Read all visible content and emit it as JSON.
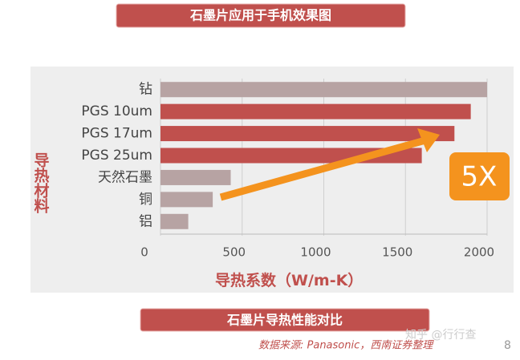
{
  "header": {
    "title": "石墨片应用于手机效果图"
  },
  "chart_data": {
    "type": "bar",
    "orientation": "horizontal",
    "categories": [
      "钻",
      "PGS 10um",
      "PGS 17um",
      "PGS 25um",
      "天然石墨",
      "铜",
      "铝"
    ],
    "values": [
      2000,
      1900,
      1800,
      1600,
      430,
      320,
      170
    ],
    "colors": [
      "#b7a3a3",
      "#c0504d",
      "#c0504d",
      "#c0504d",
      "#b7a3a3",
      "#b7a3a3",
      "#b7a3a3"
    ],
    "xlim": [
      0,
      2000
    ],
    "xticks": [
      0,
      500,
      1000,
      1500,
      2000
    ],
    "grid": true,
    "ylabel": "导热材料",
    "xlabel": "导热系数（W/m-K）",
    "annotation": "5X"
  },
  "footer": {
    "caption": "石墨片导热性能对比",
    "source": "数据来源: Panasonic，西南证券整理",
    "watermark": "知乎 @行行查",
    "page": "8"
  }
}
